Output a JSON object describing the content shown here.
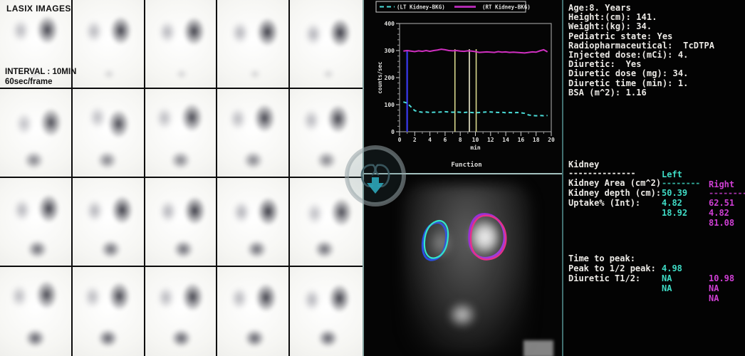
{
  "left_panel": {
    "title": "LASIX IMAGES",
    "interval_line1": "INTERVAL : 10MIN",
    "interval_line2": "60sec/frame",
    "grid": {
      "rows": 4,
      "cols": 5
    }
  },
  "chart_data": {
    "type": "line",
    "title": "Function",
    "xlabel": "min",
    "ylabel": "counts/sec",
    "xlim": [
      0,
      20
    ],
    "ylim": [
      0,
      400
    ],
    "xticks": [
      0,
      2,
      4,
      6,
      8,
      10,
      12,
      14,
      16,
      18,
      20
    ],
    "yticks": [
      0,
      100,
      200,
      300,
      400
    ],
    "grid": false,
    "legend_position": "top",
    "legend": [
      {
        "label": "(LT Kidney-BKG)",
        "color": "#4adcd8",
        "style": "dashed"
      },
      {
        "label": "(RT Kidney-BKG)",
        "color": "#b02ab0",
        "style": "solid"
      }
    ],
    "series": [
      {
        "name": "(LT Kidney-BKG)",
        "color": "#4adcd8",
        "style": "dashed",
        "x": [
          0.5,
          1,
          1.5,
          2,
          2.5,
          3,
          3.5,
          4,
          4.5,
          5,
          5.5,
          6,
          6.5,
          7,
          7.5,
          8,
          8.5,
          9,
          9.5,
          10,
          10.5,
          11,
          11.5,
          12,
          12.5,
          13,
          13.5,
          14,
          14.5,
          15,
          15.5,
          16,
          16.5,
          17,
          17.5,
          18,
          18.5,
          19,
          19.5
        ],
        "y": [
          110,
          106,
          92,
          78,
          74,
          72,
          73,
          71,
          72,
          72,
          73,
          74,
          73,
          72,
          73,
          72,
          71,
          72,
          71,
          70,
          71,
          72,
          73,
          73,
          72,
          71,
          72,
          70,
          71,
          70,
          71,
          70,
          68,
          62,
          60,
          59,
          60,
          59,
          60
        ]
      },
      {
        "name": "(RT Kidney-BKG)",
        "color": "#d02fc0",
        "style": "solid",
        "x": [
          0.5,
          1,
          1.5,
          2,
          2.5,
          3,
          3.5,
          4,
          4.5,
          5,
          5.5,
          6,
          6.5,
          7,
          7.5,
          8,
          8.5,
          9,
          9.5,
          10,
          10.5,
          11,
          11.5,
          12,
          12.5,
          13,
          13.5,
          14,
          14.5,
          15,
          15.5,
          16,
          16.5,
          17,
          17.5,
          18,
          18.5,
          19,
          19.5
        ],
        "y": [
          298,
          300,
          298,
          296,
          299,
          297,
          300,
          297,
          300,
          302,
          305,
          303,
          300,
          299,
          300,
          298,
          297,
          299,
          298,
          296,
          293,
          294,
          295,
          294,
          293,
          296,
          294,
          295,
          293,
          294,
          293,
          292,
          291,
          293,
          295,
          294,
          299,
          303,
          295
        ]
      }
    ],
    "vlines": [
      {
        "x": 1.0,
        "y2": 300,
        "color": "#3434d8",
        "width": 2.5
      },
      {
        "x": 7.3,
        "y2": 305,
        "color": "#d6d68c",
        "width": 1.6
      },
      {
        "x": 9.2,
        "y2": 305,
        "color": "#eceacb",
        "width": 1.6
      },
      {
        "x": 10.1,
        "y2": 305,
        "color": "#d6d68c",
        "width": 1.6
      }
    ]
  },
  "patient_info": {
    "lines": [
      "Age:8. Years",
      "Height:(cm): 141.",
      "Weight:(kg): 34.",
      "Pediatric state: Yes",
      "Radiopharmaceutical:  TcDTPA",
      "Injected dose:(mCi): 4.",
      "Diuretic:  Yes",
      "Diuretic dose (mg): 34.",
      "Diuretic time (min): 1.",
      "BSA (m^2): 1.16"
    ]
  },
  "kidney_table": {
    "header": {
      "label": "Kidney",
      "left": "Left",
      "right": "Right"
    },
    "separator": {
      "label": "--------------",
      "left": "--------",
      "right": "--------"
    },
    "rows": [
      {
        "label": "Kidney Area (cm^2)",
        "left": "50.39",
        "right": "62.51"
      },
      {
        "label": "Kidney depth (cm):",
        "left": "4.82",
        "right": "4.82"
      },
      {
        "label": "Uptake% (Int):",
        "left": "18.92",
        "right": "81.08"
      }
    ]
  },
  "timing_table": {
    "rows": [
      {
        "label": "Time to peak:",
        "left": "4.98",
        "right": "10.98"
      },
      {
        "label": "Peak to 1/2 peak:",
        "left": "NA",
        "right": "NA"
      },
      {
        "label": "Diuretic T1/2:",
        "left": "NA",
        "right": "NA"
      }
    ]
  },
  "colors": {
    "left_accent": "#3fdcc6",
    "right_accent": "#cf3fd4",
    "text": "#eceae6",
    "separator_teal": "#bfe3e0",
    "yellow_marker": "#d6d68c",
    "blue_marker": "#3434d8"
  }
}
